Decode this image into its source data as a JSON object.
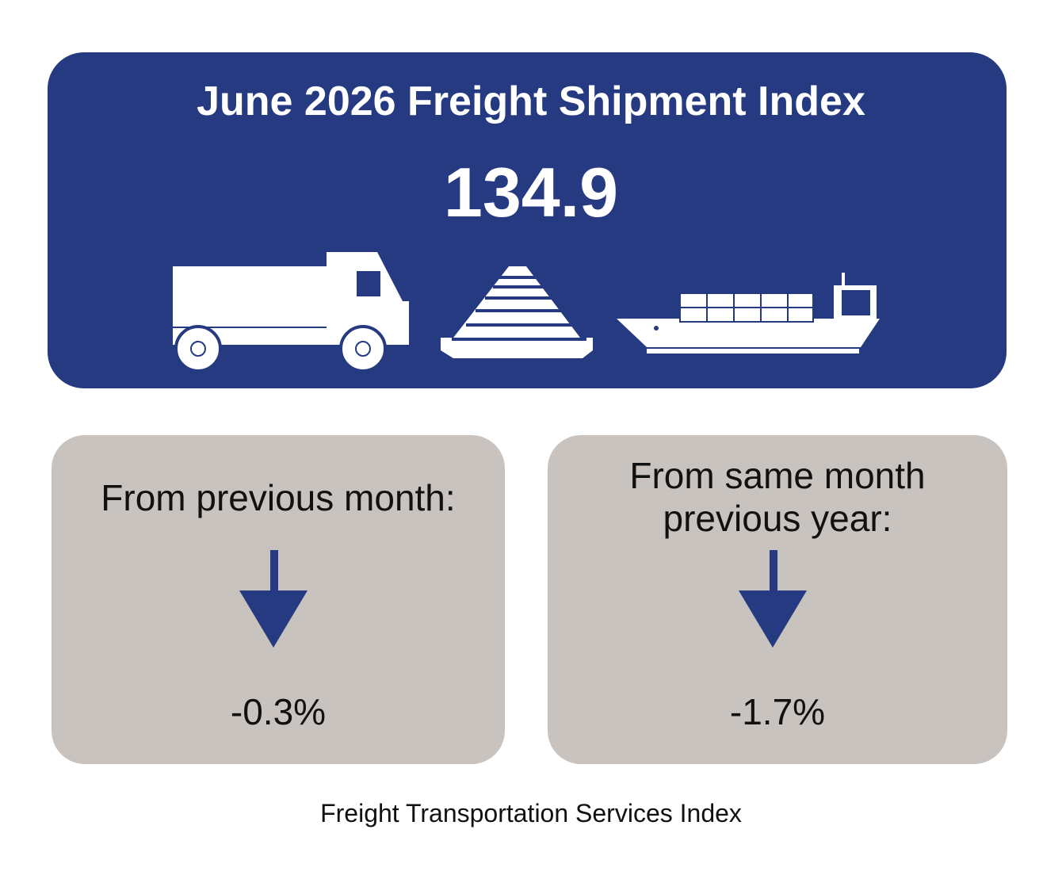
{
  "banner": {
    "title": "June 2026 Freight Shipment Index",
    "value": "134.9"
  },
  "cards": [
    {
      "label": "From previous month:",
      "value": "-0.3%"
    },
    {
      "label": "From same month previous year:",
      "value": "-1.7%"
    }
  ],
  "footer": "Freight Transportation Services Index"
}
